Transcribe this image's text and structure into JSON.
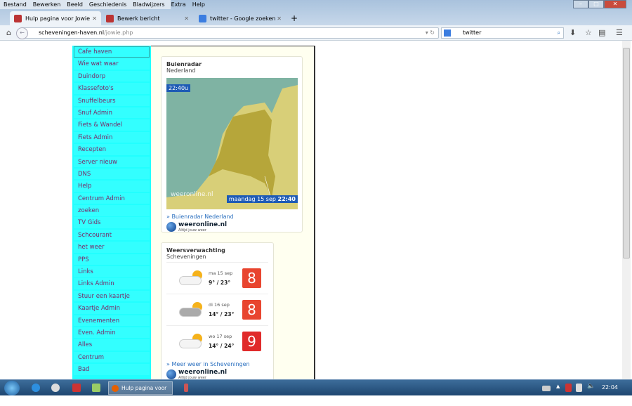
{
  "menubar": [
    "Bestand",
    "Bewerken",
    "Beeld",
    "Geschiedenis",
    "Bladwijzers",
    "Extra",
    "Help"
  ],
  "tabs": [
    {
      "label": "Hulp pagina voor Jowie",
      "active": true
    },
    {
      "label": "Bewerk bericht",
      "active": false
    },
    {
      "label": "twitter - Google zoeken",
      "active": false
    }
  ],
  "url": {
    "host": "scheveningen-haven.nl",
    "path": "/jowie.php"
  },
  "search": {
    "value": "twitter"
  },
  "menu": [
    "Cafe haven",
    "Wie wat waar",
    "Duindorp",
    "Klassefoto's",
    "Snuffelbeurs",
    "Snuf Admin",
    "Fiets & Wandel",
    "Fiets Admin",
    "Recepten",
    "Server nieuw",
    "DNS",
    "Help",
    "Centrum Admin",
    "zoeken",
    "TV Gids",
    "Schcourant",
    "het weer",
    "PPS",
    "Links",
    "Links Admin",
    "Stuur een kaartje",
    "Kaartje Admin",
    "Evenementen",
    "Even. Admin",
    "Alles",
    "Centrum",
    "Bad"
  ],
  "radar": {
    "title": "Buienradar",
    "subtitle": "Nederland",
    "time": "22:40u",
    "date": "maandag 15 sep",
    "date_time": "22:40",
    "watermark": "weeronline.nl",
    "link": "Buienradar Nederland"
  },
  "forecast": {
    "title": "Weersverwachting",
    "subtitle": "Scheveningen",
    "days": [
      {
        "day": "ma 15 sep",
        "temp": "9° / 23°",
        "score": "8",
        "color": "#e8452f",
        "icon": "sun-behind-cloud-icon"
      },
      {
        "day": "di 16 sep",
        "temp": "14° / 23°",
        "score": "8",
        "color": "#e8452f",
        "icon": "sun-behind-grey-cloud-icon"
      },
      {
        "day": "wo 17 sep",
        "temp": "14° / 24°",
        "score": "9",
        "color": "#e02a2a",
        "icon": "sun-behind-cloud-icon"
      }
    ],
    "link": "Meer weer in Scheveningen"
  },
  "logo": {
    "name": "weeronline.nl",
    "tagline": "Altijd jouw weer"
  },
  "taskbar": {
    "task": "Hulp pagina voor Jo...",
    "clock": "22:04"
  }
}
